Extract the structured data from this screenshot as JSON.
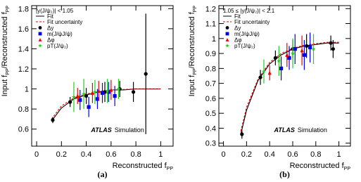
{
  "chart_data": [
    {
      "type": "scatter",
      "panel_label": "(a)",
      "xlabel": {
        "text": "Reconstructed f",
        "sub": "PP"
      },
      "ylabel": [
        "Input f",
        "PP",
        "/Reconstructed f",
        "PP"
      ],
      "legend_title": "|y(J/ψ₂)| < 1.05",
      "annotation": {
        "bold": "ATLAS",
        "text": "Simulation"
      },
      "xlim": [
        -0.04,
        1.1
      ],
      "xticks": [
        0,
        0.2,
        0.4,
        0.6,
        0.8,
        1
      ],
      "ylim": [
        0.43,
        1.83
      ],
      "yticks": [
        0.6,
        0.8,
        1,
        1.2,
        1.4,
        1.6,
        1.8
      ],
      "lines": [
        {
          "name": "Fit",
          "color": "#000000",
          "dash": false,
          "x": [
            0.12,
            0.2,
            0.3,
            0.4,
            0.5,
            0.6,
            0.7,
            0.8,
            0.9,
            1.0
          ],
          "values": [
            0.68,
            0.81,
            0.9,
            0.94,
            0.97,
            0.99,
            0.99,
            1.0,
            1.0,
            1.0
          ]
        },
        {
          "name": "Fit uncertainty",
          "color": "#dd0000",
          "dash": true,
          "x": [
            0.12,
            0.2,
            0.3,
            0.4,
            0.5,
            0.6,
            0.7,
            0.8,
            0.9,
            1.0
          ],
          "values": [
            0.7,
            0.83,
            0.91,
            0.95,
            0.975,
            0.99,
            0.995,
            1.0,
            1.0,
            1.0
          ]
        }
      ],
      "series": [
        {
          "name": "Δy",
          "color": "#000000",
          "marker": "circle",
          "x": [
            0.13,
            0.27,
            0.4,
            0.55,
            0.67,
            0.78,
            0.88
          ],
          "values": [
            0.69,
            0.87,
            0.93,
            0.97,
            1.0,
            0.97,
            1.15
          ],
          "errors": [
            0.03,
            0.05,
            0.08,
            0.1,
            0.08,
            0.1,
            0.6
          ]
        },
        {
          "name": "m(J/ψJ/ψ)",
          "color": "#0000ee",
          "marker": "square",
          "x": [
            0.35,
            0.42,
            0.49,
            0.53,
            0.58,
            0.63
          ],
          "values": [
            0.89,
            0.82,
            0.9,
            0.96,
            0.97,
            0.93
          ],
          "errors": [
            0.1,
            0.1,
            0.1,
            0.1,
            0.1,
            0.1
          ]
        },
        {
          "name": "Δφ",
          "color": "#ee0000",
          "marker": "triangle",
          "x": [
            0.33,
            0.45,
            0.5,
            0.6
          ],
          "values": [
            0.93,
            0.96,
            0.98,
            0.99
          ],
          "errors": [
            0.08,
            0.1,
            0.1,
            0.1
          ]
        },
        {
          "name": "pT(J/ψ₂)",
          "color": "#22cc22",
          "marker": "star",
          "x": [
            0.3,
            0.38,
            0.47,
            0.57,
            0.66
          ],
          "values": [
            0.92,
            0.95,
            0.97,
            0.98,
            1.0
          ],
          "errors": [
            0.15,
            0.15,
            0.12,
            0.12,
            0.1
          ]
        }
      ]
    },
    {
      "type": "scatter",
      "panel_label": "(b)",
      "xlabel": {
        "text": "Reconstructed f",
        "sub": "PP"
      },
      "ylabel": [
        "Input f",
        "PP",
        "/Reconstructed f",
        "PP"
      ],
      "legend_title": "1.05 ≤ |y(J/ψ₂)| < 2.1",
      "annotation": {
        "bold": "ATLAS",
        "text": "Simulation"
      },
      "xlim": [
        -0.04,
        1.1
      ],
      "xticks": [
        0,
        0.2,
        0.4,
        0.6,
        0.8,
        1
      ],
      "ylim": [
        0.28,
        1.22
      ],
      "yticks": [
        0.3,
        0.4,
        0.5,
        0.6,
        0.7,
        0.8,
        0.9,
        1,
        1.1,
        1.2
      ],
      "lines": [
        {
          "name": "Fit",
          "color": "#000000",
          "dash": false,
          "x": [
            0.15,
            0.2,
            0.3,
            0.4,
            0.5,
            0.6,
            0.7,
            0.8,
            0.9,
            1.0
          ],
          "values": [
            0.36,
            0.52,
            0.72,
            0.83,
            0.89,
            0.93,
            0.95,
            0.96,
            0.97,
            0.97
          ]
        },
        {
          "name": "Fit uncertainty",
          "color": "#dd0000",
          "dash": true,
          "x": [
            0.15,
            0.2,
            0.3,
            0.4,
            0.5,
            0.6,
            0.7,
            0.8,
            0.9,
            1.0
          ],
          "values": [
            0.38,
            0.54,
            0.73,
            0.84,
            0.9,
            0.935,
            0.955,
            0.965,
            0.975,
            0.975
          ]
        }
      ],
      "series": [
        {
          "name": "Δy",
          "color": "#000000",
          "marker": "circle",
          "x": [
            0.16,
            0.32,
            0.45,
            0.6,
            0.72,
            0.93,
            0.95
          ],
          "values": [
            0.36,
            0.74,
            0.87,
            0.93,
            0.95,
            0.97,
            0.93
          ],
          "errors": [
            0.03,
            0.05,
            0.05,
            0.06,
            0.08,
            0.05,
            0.06
          ]
        },
        {
          "name": "m(J/ψJ/ψ)",
          "color": "#0000ee",
          "marker": "square",
          "x": [
            0.5,
            0.57,
            0.62,
            0.7,
            0.75
          ],
          "values": [
            0.8,
            0.87,
            0.93,
            0.89,
            0.94
          ],
          "errors": [
            0.08,
            0.08,
            0.1,
            0.1,
            0.1
          ]
        },
        {
          "name": "Δφ",
          "color": "#ee0000",
          "marker": "triangle",
          "x": [
            0.4,
            0.55,
            0.68
          ],
          "values": [
            0.77,
            0.89,
            0.92
          ],
          "errors": [
            0.05,
            0.08,
            0.1
          ]
        },
        {
          "name": "pT(J/ψ₂)",
          "color": "#22cc22",
          "marker": "star",
          "x": [
            0.35,
            0.48,
            0.6,
            0.78
          ],
          "values": [
            0.78,
            0.85,
            0.9,
            0.93
          ],
          "errors": [
            0.08,
            0.1,
            0.1,
            0.1
          ]
        }
      ]
    }
  ]
}
